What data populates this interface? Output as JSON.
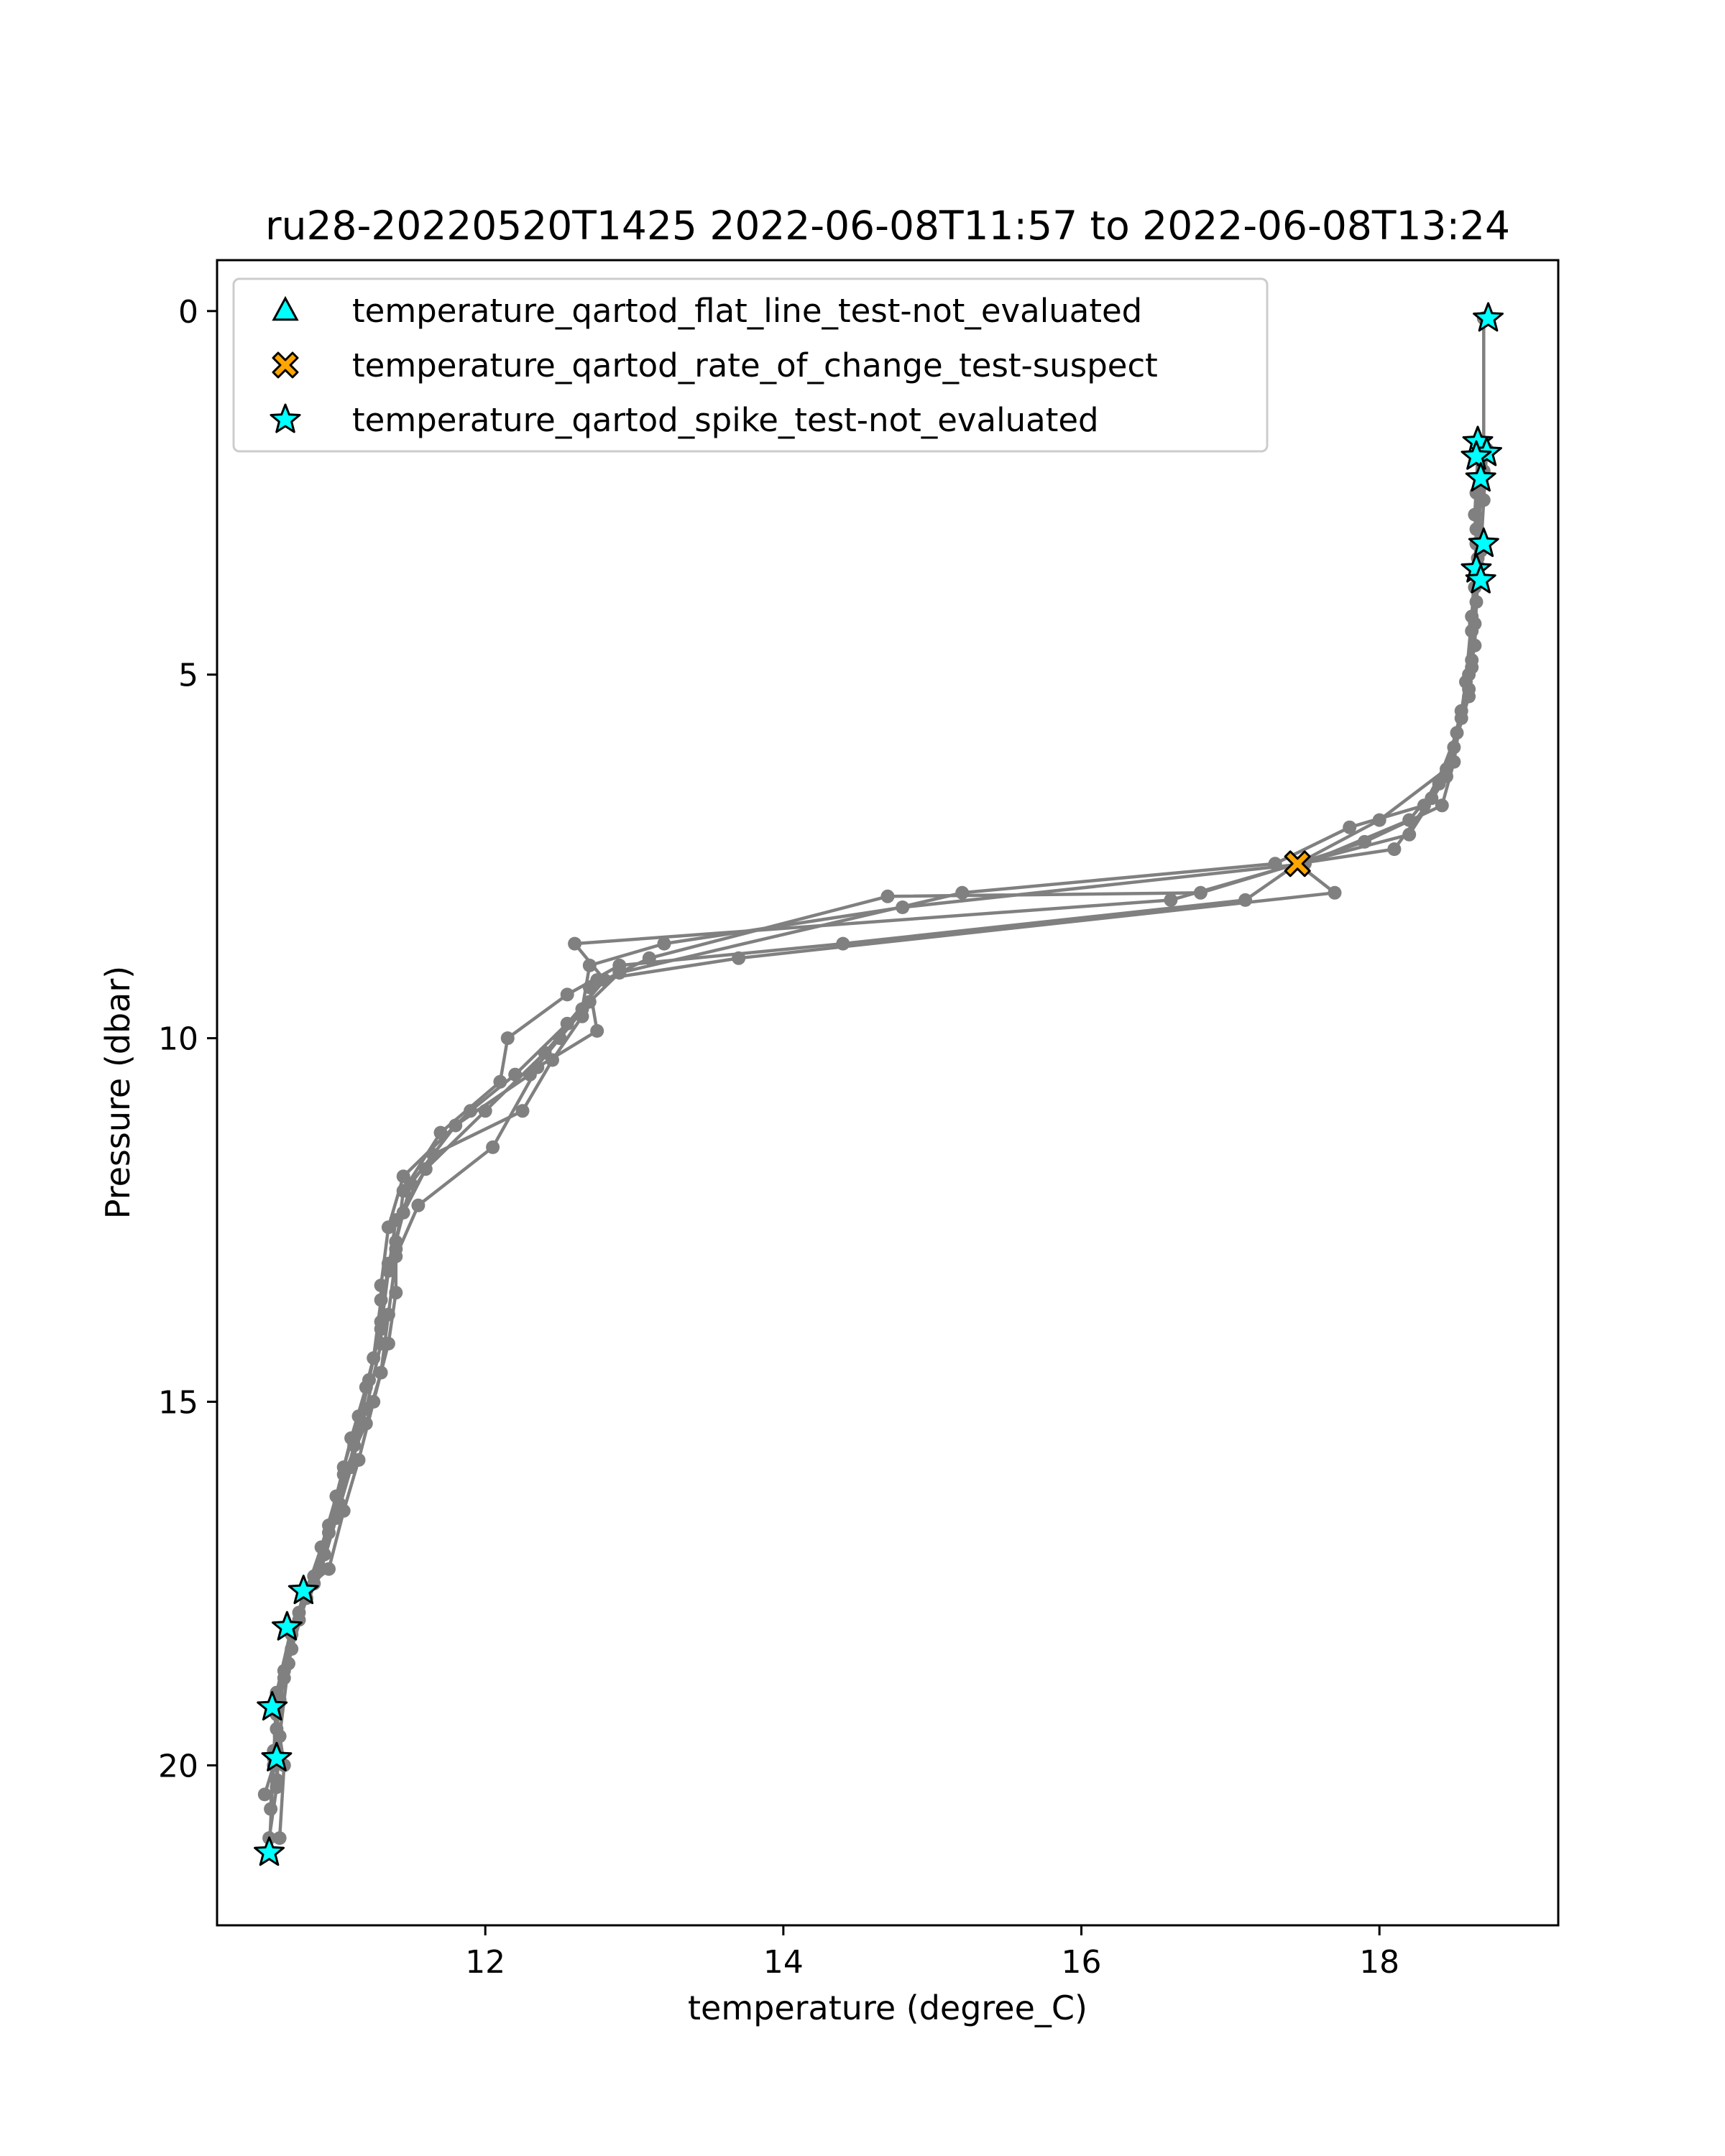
{
  "chart_data": {
    "type": "line",
    "title": "ru28-20220520T1425 2022-06-08T11:57 to 2022-06-08T13:24",
    "xlabel": "temperature (degree_C)",
    "ylabel": "Pressure (dbar)",
    "xlim": [
      10.2,
      19.2
    ],
    "ylim": [
      22.2,
      -0.7
    ],
    "y_inverted": true,
    "xticks": [
      12,
      14,
      16,
      18
    ],
    "yticks": [
      0,
      5,
      10,
      15,
      20
    ],
    "grid": false,
    "legend_position": "top-left",
    "line_color": "#808080",
    "series": [
      {
        "points": [
          [
            18.7,
            0.1
          ],
          [
            18.7,
            1.9
          ],
          [
            18.68,
            2.3
          ],
          [
            18.65,
            3.0
          ],
          [
            18.65,
            3.6
          ],
          [
            18.62,
            4.4
          ],
          [
            18.6,
            5.0
          ],
          [
            18.55,
            5.6
          ],
          [
            18.4,
            6.5
          ],
          [
            18.2,
            7.0
          ],
          [
            17.5,
            7.6
          ],
          [
            14.8,
            8.2
          ],
          [
            13.2,
            8.7
          ],
          [
            12.7,
            9.0
          ],
          [
            12.65,
            9.6
          ],
          [
            12.4,
            10.2
          ],
          [
            12.0,
            11.0
          ],
          [
            11.6,
            11.8
          ],
          [
            11.4,
            12.5
          ],
          [
            11.35,
            13.2
          ],
          [
            11.3,
            14.0
          ],
          [
            11.2,
            14.8
          ],
          [
            11.1,
            15.5
          ],
          [
            11.0,
            16.3
          ],
          [
            10.9,
            17.0
          ],
          [
            10.8,
            17.6
          ],
          [
            10.7,
            18.1
          ],
          [
            10.6,
            19.0
          ],
          [
            10.58,
            19.9
          ],
          [
            10.55,
            21.2
          ]
        ]
      },
      {
        "points": [
          [
            18.72,
            1.9
          ],
          [
            18.7,
            2.6
          ],
          [
            18.68,
            3.3
          ],
          [
            18.65,
            4.0
          ],
          [
            18.62,
            4.8
          ],
          [
            18.6,
            5.3
          ],
          [
            18.5,
            6.0
          ],
          [
            18.3,
            6.8
          ],
          [
            17.8,
            7.1
          ],
          [
            17.3,
            7.6
          ],
          [
            15.2,
            8.0
          ],
          [
            12.9,
            9.1
          ],
          [
            12.7,
            9.5
          ],
          [
            12.5,
            10.0
          ],
          [
            12.3,
            10.5
          ],
          [
            11.8,
            11.2
          ],
          [
            11.5,
            12.0
          ],
          [
            11.4,
            12.8
          ],
          [
            11.4,
            13.5
          ],
          [
            11.35,
            14.2
          ],
          [
            11.25,
            15.0
          ],
          [
            11.15,
            15.8
          ],
          [
            11.05,
            16.5
          ],
          [
            10.95,
            17.3
          ],
          [
            10.78,
            17.6
          ],
          [
            10.68,
            18.6
          ],
          [
            10.62,
            19.6
          ],
          [
            10.6,
            20.3
          ],
          [
            10.55,
            21.0
          ]
        ]
      },
      {
        "points": [
          [
            18.68,
            1.8
          ],
          [
            18.65,
            2.5
          ],
          [
            18.65,
            3.2
          ],
          [
            18.62,
            4.2
          ],
          [
            18.58,
            5.1
          ],
          [
            18.5,
            6.2
          ],
          [
            18.42,
            6.8
          ],
          [
            17.9,
            7.3
          ],
          [
            17.45,
            7.6
          ],
          [
            16.6,
            8.1
          ],
          [
            12.6,
            8.7
          ],
          [
            12.8,
            9.2
          ],
          [
            12.55,
            9.8
          ],
          [
            12.2,
            10.5
          ],
          [
            11.9,
            11.0
          ],
          [
            11.45,
            11.9
          ],
          [
            11.35,
            12.6
          ],
          [
            11.3,
            13.4
          ],
          [
            11.3,
            14.2
          ],
          [
            11.2,
            15.1
          ],
          [
            11.1,
            15.9
          ],
          [
            11.0,
            16.6
          ],
          [
            10.9,
            17.3
          ],
          [
            10.75,
            17.9
          ],
          [
            10.65,
            18.8
          ],
          [
            10.6,
            19.3
          ],
          [
            10.65,
            20.0
          ],
          [
            10.62,
            21.0
          ]
        ]
      },
      {
        "points": [
          [
            18.66,
            2.0
          ],
          [
            18.64,
            2.8
          ],
          [
            18.66,
            3.5
          ],
          [
            18.64,
            4.6
          ],
          [
            18.55,
            5.5
          ],
          [
            18.45,
            6.3
          ],
          [
            18.0,
            7.0
          ],
          [
            17.45,
            7.6
          ],
          [
            16.8,
            8.0
          ],
          [
            14.7,
            8.05
          ],
          [
            13.1,
            8.9
          ],
          [
            12.7,
            9.3
          ],
          [
            12.75,
            9.9
          ],
          [
            12.35,
            10.4
          ],
          [
            12.05,
            11.5
          ],
          [
            11.55,
            12.3
          ],
          [
            11.4,
            13.0
          ],
          [
            11.35,
            13.8
          ],
          [
            11.3,
            14.6
          ],
          [
            11.2,
            15.3
          ],
          [
            11.05,
            16.0
          ],
          [
            10.95,
            16.8
          ],
          [
            10.85,
            17.5
          ],
          [
            10.7,
            18.2
          ],
          [
            10.6,
            19.2
          ],
          [
            10.58,
            20.0
          ],
          [
            10.52,
            20.4
          ]
        ]
      },
      {
        "points": [
          [
            18.7,
            2.2
          ],
          [
            18.66,
            3.0
          ],
          [
            18.64,
            3.8
          ],
          [
            18.62,
            4.9
          ],
          [
            18.52,
            5.8
          ],
          [
            18.35,
            6.7
          ],
          [
            18.1,
            7.4
          ],
          [
            17.45,
            7.6
          ],
          [
            17.1,
            8.1
          ],
          [
            14.4,
            8.7
          ],
          [
            12.9,
            9.0
          ],
          [
            12.55,
            9.4
          ],
          [
            12.15,
            10.0
          ],
          [
            12.1,
            10.6
          ],
          [
            11.7,
            11.3
          ],
          [
            11.45,
            12.1
          ],
          [
            11.4,
            12.9
          ],
          [
            11.3,
            13.6
          ],
          [
            11.25,
            14.4
          ],
          [
            11.15,
            15.2
          ],
          [
            11.05,
            15.9
          ],
          [
            10.95,
            16.7
          ],
          [
            10.85,
            17.4
          ],
          [
            10.75,
            18.0
          ],
          [
            10.65,
            18.7
          ],
          [
            10.6,
            19.5
          ],
          [
            10.6,
            20.2
          ]
        ]
      },
      {
        "points": [
          [
            18.68,
            2.4
          ],
          [
            18.66,
            3.4
          ],
          [
            18.64,
            4.3
          ],
          [
            18.6,
            5.2
          ],
          [
            18.45,
            6.4
          ],
          [
            18.2,
            7.2
          ],
          [
            17.45,
            7.6
          ],
          [
            17.7,
            8.0
          ],
          [
            13.7,
            8.9
          ],
          [
            12.75,
            9.2
          ],
          [
            12.65,
            9.7
          ],
          [
            12.45,
            10.3
          ],
          [
            12.25,
            11.0
          ],
          [
            11.65,
            11.6
          ],
          [
            11.45,
            12.4
          ],
          [
            11.35,
            13.1
          ],
          [
            11.3,
            13.9
          ],
          [
            11.22,
            14.7
          ],
          [
            11.12,
            15.6
          ],
          [
            11.02,
            16.4
          ],
          [
            10.92,
            17.1
          ],
          [
            10.8,
            17.7
          ],
          [
            10.7,
            18.4
          ],
          [
            10.62,
            19.1
          ],
          [
            10.58,
            19.8
          ],
          [
            10.56,
            20.6
          ]
        ]
      }
    ],
    "legend": [
      {
        "label": "temperature_qartod_flat_line_test-not_evaluated",
        "marker": "triangle",
        "color": "#00ffff"
      },
      {
        "label": "temperature_qartod_rate_of_change_test-suspect",
        "marker": "x",
        "color": "#ffa500"
      },
      {
        "label": "temperature_qartod_spike_test-not_evaluated",
        "marker": "star",
        "color": "#00ffff"
      }
    ],
    "markers": {
      "flat_line_not_evaluated": [],
      "rate_of_change_suspect": [
        [
          17.45,
          7.6
        ]
      ],
      "spike_not_evaluated": [
        [
          18.73,
          0.1
        ],
        [
          18.66,
          1.8
        ],
        [
          18.72,
          1.95
        ],
        [
          18.65,
          2.0
        ],
        [
          18.68,
          2.3
        ],
        [
          18.7,
          3.2
        ],
        [
          18.65,
          3.55
        ],
        [
          18.68,
          3.7
        ],
        [
          10.78,
          17.6
        ],
        [
          10.67,
          18.1
        ],
        [
          10.57,
          19.2
        ],
        [
          10.6,
          19.9
        ],
        [
          10.55,
          21.2
        ]
      ]
    }
  }
}
